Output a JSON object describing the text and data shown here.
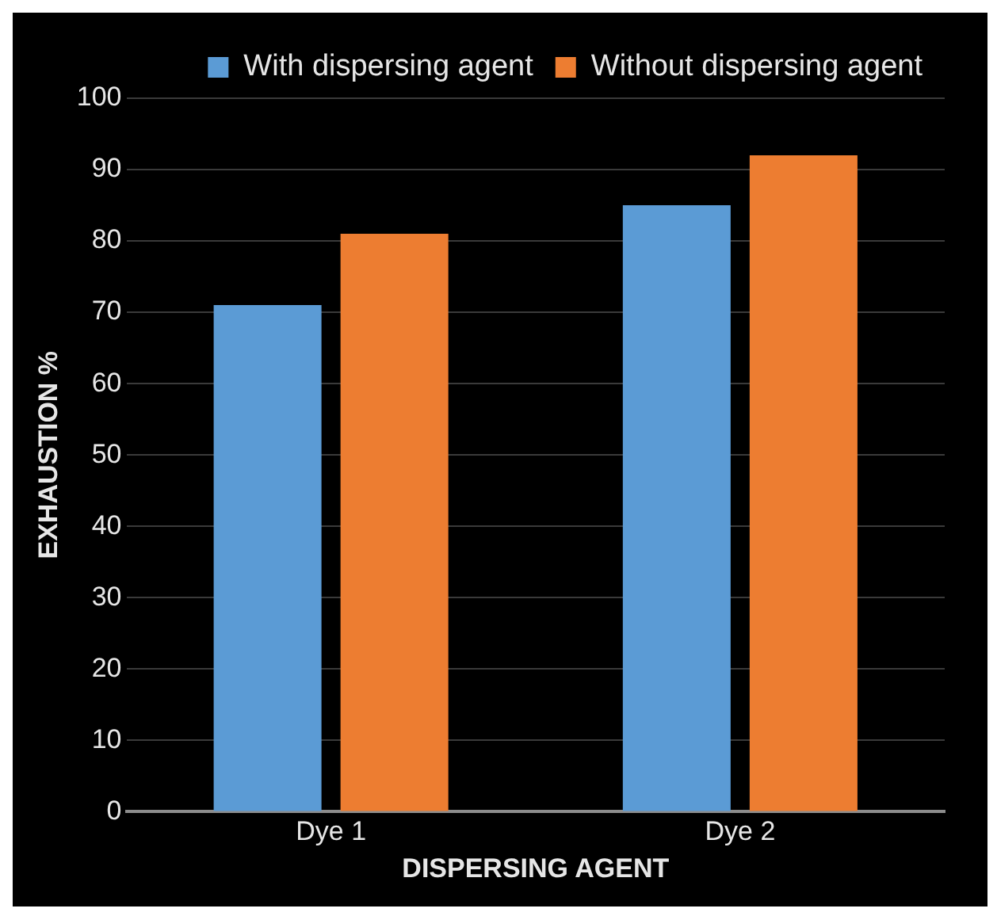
{
  "chart_data": {
    "type": "bar",
    "xlabel": "DISPERSING AGENT",
    "ylabel": "EXHAUSTION %",
    "categories": [
      "Dye 1",
      "Dye 2"
    ],
    "series": [
      {
        "name": "With dispersing agent",
        "color": "#5b9bd5",
        "values": [
          71,
          85
        ]
      },
      {
        "name": "Without dispersing agent",
        "color": "#ed7d31",
        "values": [
          81,
          92
        ]
      }
    ],
    "ylim": [
      0,
      100
    ],
    "yticks": [
      0,
      10,
      20,
      30,
      40,
      50,
      60,
      70,
      80,
      90,
      100
    ],
    "grid": "y",
    "legend": "top right"
  }
}
